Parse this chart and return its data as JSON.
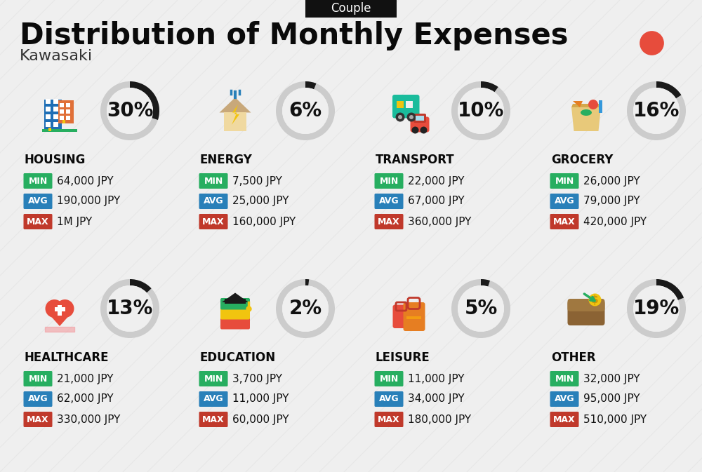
{
  "title": "Distribution of Monthly Expenses",
  "subtitle": "Kawasaki",
  "badge": "Couple",
  "bg_color": "#efefef",
  "categories": [
    {
      "name": "HOUSING",
      "pct": 30,
      "icon": "housing",
      "min_val": "64,000 JPY",
      "avg_val": "190,000 JPY",
      "max_val": "1M JPY",
      "row": 0,
      "col": 0
    },
    {
      "name": "ENERGY",
      "pct": 6,
      "icon": "energy",
      "min_val": "7,500 JPY",
      "avg_val": "25,000 JPY",
      "max_val": "160,000 JPY",
      "row": 0,
      "col": 1
    },
    {
      "name": "TRANSPORT",
      "pct": 10,
      "icon": "transport",
      "min_val": "22,000 JPY",
      "avg_val": "67,000 JPY",
      "max_val": "360,000 JPY",
      "row": 0,
      "col": 2
    },
    {
      "name": "GROCERY",
      "pct": 16,
      "icon": "grocery",
      "min_val": "26,000 JPY",
      "avg_val": "79,000 JPY",
      "max_val": "420,000 JPY",
      "row": 0,
      "col": 3
    },
    {
      "name": "HEALTHCARE",
      "pct": 13,
      "icon": "healthcare",
      "min_val": "21,000 JPY",
      "avg_val": "62,000 JPY",
      "max_val": "330,000 JPY",
      "row": 1,
      "col": 0
    },
    {
      "name": "EDUCATION",
      "pct": 2,
      "icon": "education",
      "min_val": "3,700 JPY",
      "avg_val": "11,000 JPY",
      "max_val": "60,000 JPY",
      "row": 1,
      "col": 1
    },
    {
      "name": "LEISURE",
      "pct": 5,
      "icon": "leisure",
      "min_val": "11,000 JPY",
      "avg_val": "34,000 JPY",
      "max_val": "180,000 JPY",
      "row": 1,
      "col": 2
    },
    {
      "name": "OTHER",
      "pct": 19,
      "icon": "other",
      "min_val": "32,000 JPY",
      "avg_val": "95,000 JPY",
      "max_val": "510,000 JPY",
      "row": 1,
      "col": 3
    }
  ],
  "color_min": "#27ae60",
  "color_avg": "#2980b9",
  "color_max": "#c0392b",
  "color_arc_filled": "#1a1a1a",
  "color_arc_empty": "#cccccc",
  "color_red_dot": "#e74c3c",
  "title_fontsize": 30,
  "subtitle_fontsize": 16,
  "badge_fontsize": 12,
  "category_fontsize": 12,
  "value_fontsize": 11,
  "pct_fontsize": 20,
  "stripe_color": "#d8d8d8",
  "stripe_alpha": 0.35
}
